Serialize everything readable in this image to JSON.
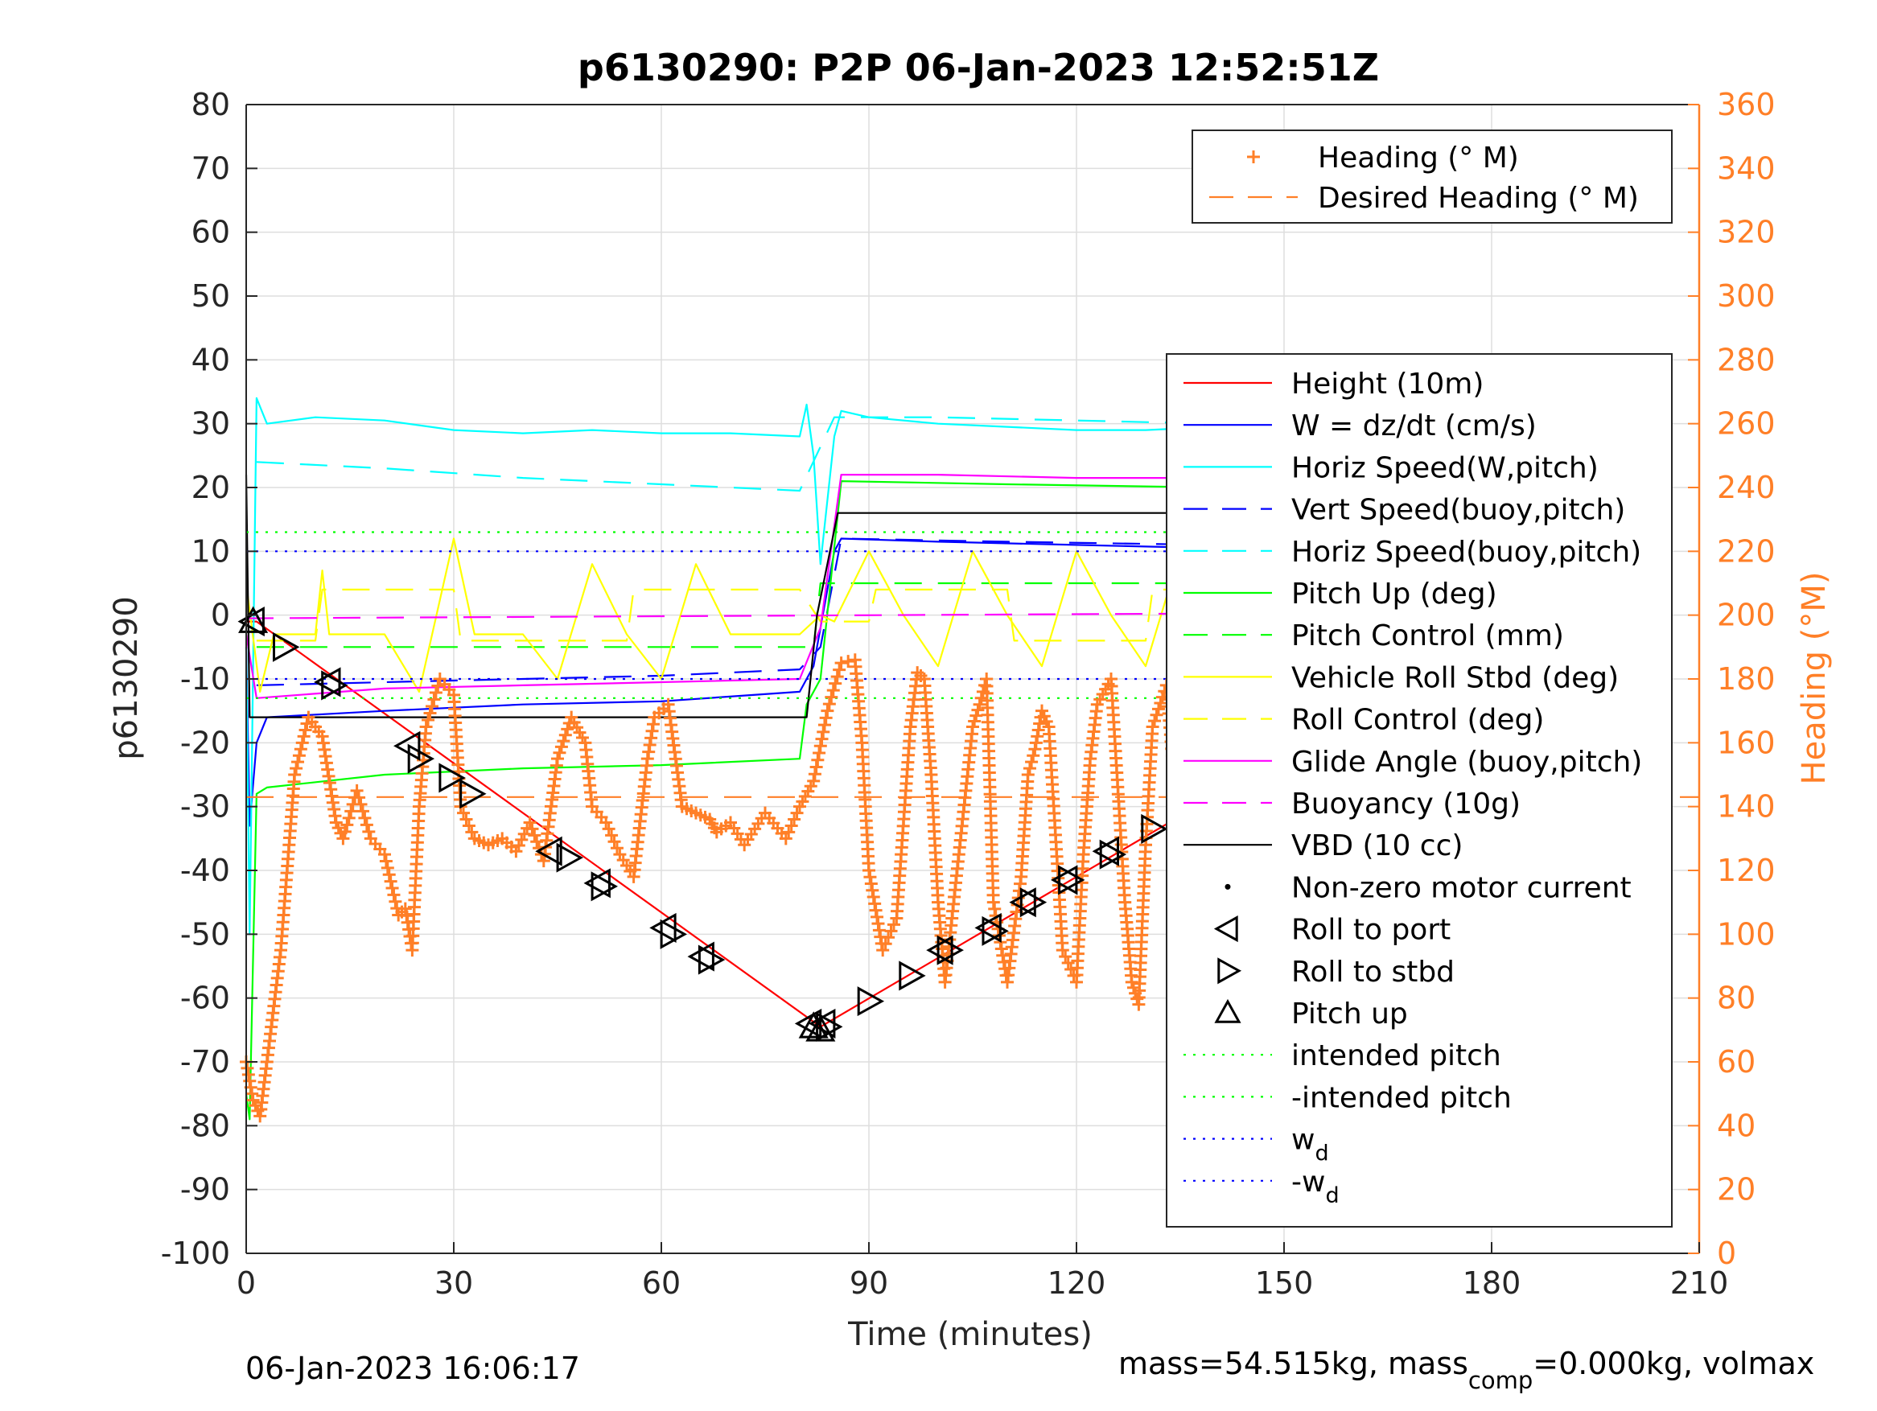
{
  "chart_data": {
    "type": "line",
    "title": "p6130290: P2P 06-Jan-2023 12:52:51Z",
    "xlabel": "Time (minutes)",
    "ylabel_left": "p6130290",
    "ylabel_right": "Heading (°M)",
    "xlim": [
      0,
      210
    ],
    "ylim_left": [
      -100,
      80
    ],
    "ylim_right": [
      0,
      360
    ],
    "xticks": [
      0,
      30,
      60,
      90,
      120,
      150,
      180,
      210
    ],
    "yticks_left": [
      80,
      70,
      60,
      50,
      40,
      30,
      20,
      10,
      0,
      -10,
      -20,
      -30,
      -40,
      -50,
      -60,
      -70,
      -80,
      -90,
      -100
    ],
    "yticks_right": [
      360,
      340,
      320,
      300,
      280,
      260,
      240,
      220,
      200,
      180,
      160,
      140,
      120,
      100,
      80,
      60,
      40,
      20,
      0
    ],
    "grid": true,
    "footer_left": "06-Jan-2023 16:06:17",
    "footer_right_parts": [
      "mass=54.515kg, mass",
      "comp",
      "=0.000kg, volmax"
    ],
    "legend_top": {
      "placement": "top-right",
      "entries": [
        {
          "label": "Heading (° M)",
          "color": "#ff7f27",
          "style": "plus"
        },
        {
          "label": "Desired Heading (° M)",
          "color": "#ff7f27",
          "style": "dashed"
        }
      ]
    },
    "legend_main": {
      "placement": "right",
      "entries": [
        {
          "label": "Height (10m)",
          "color": "#ff0000",
          "style": "solid"
        },
        {
          "label": "W = dz/dt (cm/s)",
          "color": "#0000ff",
          "style": "solid"
        },
        {
          "label": "Horiz Speed(W,pitch)",
          "color": "#00ffff",
          "style": "solid"
        },
        {
          "label": "Vert Speed(buoy,pitch)",
          "color": "#0000ff",
          "style": "dashed"
        },
        {
          "label": "Horiz Speed(buoy,pitch)",
          "color": "#00ffff",
          "style": "dashed"
        },
        {
          "label": "Pitch Up (deg)",
          "color": "#00ff00",
          "style": "solid"
        },
        {
          "label": "Pitch Control (mm)",
          "color": "#00ff00",
          "style": "dashed"
        },
        {
          "label": "Vehicle Roll Stbd (deg)",
          "color": "#ffff00",
          "style": "solid"
        },
        {
          "label": "Roll Control (deg)",
          "color": "#ffff00",
          "style": "dashed"
        },
        {
          "label": "Glide Angle (buoy,pitch)",
          "color": "#ff00ff",
          "style": "solid"
        },
        {
          "label": "Buoyancy (10g)",
          "color": "#ff00ff",
          "style": "dashed"
        },
        {
          "label": "VBD (10 cc)",
          "color": "#000000",
          "style": "solid"
        },
        {
          "label": "Non-zero motor current",
          "color": "#000000",
          "style": "dot"
        },
        {
          "label": "Roll to port",
          "color": "#000000",
          "style": "tri-left"
        },
        {
          "label": "Roll to stbd",
          "color": "#000000",
          "style": "tri-right"
        },
        {
          "label": "Pitch up",
          "color": "#000000",
          "style": "tri-up"
        },
        {
          "label": "intended pitch",
          "color": "#00ff00",
          "style": "dotted"
        },
        {
          "label": "-intended pitch",
          "color": "#00ff00",
          "style": "dotted"
        },
        {
          "label": "w",
          "sub": "d",
          "color": "#0000ff",
          "style": "dotted"
        },
        {
          "label": "-w",
          "sub": "d",
          "color": "#0000ff",
          "style": "dotted"
        }
      ]
    },
    "series": [
      {
        "name": "Height (10m)",
        "axis": "left",
        "color": "#ff0000",
        "x": [
          0,
          1.5,
          83,
          183
        ],
        "y": [
          -1,
          -1,
          -64.5,
          -1
        ]
      },
      {
        "name": "W = dz/dt (cm/s)",
        "axis": "left",
        "color": "#0000ff",
        "x": [
          0,
          0.5,
          1.5,
          3,
          20,
          40,
          60,
          80,
          82,
          85,
          86,
          100,
          120,
          140,
          160,
          185
        ],
        "y": [
          -5,
          -33,
          -20,
          -16,
          -15,
          -14,
          -13.5,
          -12,
          -8,
          10,
          12,
          11.5,
          11,
          10.5,
          10,
          9.5
        ]
      },
      {
        "name": "Horiz Speed(W,pitch)",
        "axis": "left",
        "color": "#00ffff",
        "x": [
          0,
          0.5,
          1.5,
          3,
          10,
          20,
          30,
          40,
          50,
          60,
          70,
          80,
          81,
          82,
          83,
          84,
          85,
          86,
          90,
          100,
          110,
          120,
          130,
          140,
          150,
          160,
          170,
          180,
          183,
          184,
          185
        ],
        "y": [
          -5,
          -50,
          34,
          30,
          31,
          30.5,
          29,
          28.5,
          29,
          28.5,
          28.5,
          28,
          33,
          25,
          8,
          18,
          28,
          32,
          31,
          30,
          29.5,
          29,
          29,
          29.5,
          30,
          30,
          30,
          29,
          28,
          35,
          28
        ]
      },
      {
        "name": "Vert Speed(buoy,pitch)",
        "axis": "left",
        "color": "#0000ff",
        "x": [
          1.5,
          20,
          40,
          60,
          80,
          83,
          86,
          110,
          140,
          160,
          185
        ],
        "y": [
          -11,
          -10.5,
          -10,
          -9.5,
          -8.5,
          -5,
          12,
          11.5,
          11,
          10,
          9
        ]
      },
      {
        "name": "Horiz Speed(buoy,pitch)",
        "axis": "left",
        "color": "#00ffff",
        "x": [
          1.5,
          20,
          40,
          60,
          80,
          85,
          100,
          120,
          140,
          160,
          185
        ],
        "y": [
          24,
          23,
          21.5,
          20.5,
          19.5,
          31,
          31,
          30.5,
          30,
          29.5,
          29
        ]
      },
      {
        "name": "Pitch Up (deg)",
        "axis": "left",
        "color": "#00ff00",
        "x": [
          0,
          0.5,
          1.5,
          3,
          20,
          40,
          60,
          80,
          81,
          83,
          86,
          110,
          140,
          160,
          185
        ],
        "y": [
          -75,
          -79,
          -28,
          -27,
          -25,
          -24,
          -23.5,
          -22.5,
          -14,
          -10,
          21,
          20.5,
          20,
          19,
          17.5
        ]
      },
      {
        "name": "Pitch Control (mm)",
        "axis": "left",
        "color": "#00ff00",
        "x": [
          1.5,
          82,
          83,
          185
        ],
        "y": [
          -5,
          -5,
          5,
          5
        ]
      },
      {
        "name": "Vehicle Roll Stbd (deg)",
        "axis": "left",
        "color": "#ffff00",
        "x": [
          0,
          2,
          4,
          8,
          10,
          11,
          12,
          20,
          25,
          30,
          33,
          40,
          45,
          50,
          55,
          60,
          65,
          70,
          75,
          80,
          83,
          85,
          90,
          95,
          100,
          105,
          110,
          115,
          120,
          125,
          130,
          135,
          140,
          145,
          150,
          155,
          160,
          165,
          170,
          175,
          180,
          185
        ],
        "y": [
          5,
          -12,
          -3,
          -3,
          -3,
          7,
          -3,
          -3,
          -12,
          12,
          -3,
          -3,
          -10,
          8,
          -3,
          -10,
          8,
          -3,
          -3,
          -3,
          0,
          -1,
          10,
          0,
          -8,
          10,
          0,
          -8,
          10,
          0,
          -8,
          10,
          -10,
          10,
          0,
          -8,
          10,
          0,
          -12,
          10,
          0,
          5
        ]
      },
      {
        "name": "Roll Control (deg)",
        "axis": "left",
        "color": "#ffff00",
        "x": [
          1.5,
          10,
          11,
          30,
          31,
          55,
          56,
          80,
          83,
          90,
          91,
          110,
          111,
          130,
          131,
          150,
          151,
          170,
          171,
          185
        ],
        "y": [
          -4,
          -4,
          4,
          4,
          -4,
          -4,
          4,
          4,
          -1,
          -1,
          4,
          4,
          -4,
          -4,
          4,
          4,
          -4,
          -4,
          4,
          4
        ]
      },
      {
        "name": "Glide Angle (buoy,pitch)",
        "axis": "left",
        "color": "#ff00ff",
        "x": [
          0,
          1.5,
          20,
          40,
          60,
          80,
          83,
          86,
          100,
          120,
          140,
          160,
          170,
          171,
          185
        ],
        "y": [
          -3,
          -13,
          -11.5,
          -11,
          -10.5,
          -10,
          -2,
          22,
          22,
          21.5,
          21.5,
          21,
          21,
          23.5,
          23
        ]
      },
      {
        "name": "Buoyancy (10g)",
        "axis": "left",
        "color": "#ff00ff",
        "x": [
          0,
          185
        ],
        "y": [
          -0.5,
          0.5
        ]
      },
      {
        "name": "VBD (10 cc)",
        "axis": "left",
        "color": "#000000",
        "x": [
          0,
          0.5,
          1.5,
          81,
          82.5,
          85.5,
          185
        ],
        "y": [
          22,
          -16,
          -16,
          -16,
          0,
          16,
          16
        ]
      },
      {
        "name": "intended pitch",
        "axis": "left",
        "color": "#00ff00",
        "x": [
          0,
          185
        ],
        "y": [
          13,
          13
        ]
      },
      {
        "name": "-intended pitch",
        "axis": "left",
        "color": "#00ff00",
        "x": [
          0,
          185
        ],
        "y": [
          -13,
          -13
        ]
      },
      {
        "name": "w_d",
        "axis": "left",
        "color": "#0000ff",
        "x": [
          0,
          185
        ],
        "y": [
          10,
          10
        ]
      },
      {
        "name": "-w_d",
        "axis": "left",
        "color": "#0000ff",
        "x": [
          0,
          185
        ],
        "y": [
          -10,
          -10
        ]
      },
      {
        "name": "Desired Heading (° M)",
        "axis": "right",
        "color": "#ff7f27",
        "x": [
          0,
          210
        ],
        "y": [
          143,
          143
        ]
      },
      {
        "name": "Heading (° M)",
        "axis": "right",
        "color": "#ff7f27",
        "marker": "plus",
        "x": [
          0,
          1,
          2,
          3,
          5,
          7,
          9,
          11,
          13,
          14,
          16,
          18,
          20,
          22,
          23,
          24,
          25,
          26,
          28,
          30,
          31,
          33,
          35,
          37,
          39,
          41,
          43,
          45,
          47,
          49,
          50,
          52,
          54,
          56,
          58,
          59,
          61,
          63,
          65,
          67,
          68,
          70,
          72,
          75,
          78,
          80,
          82,
          84,
          86,
          88,
          89,
          90,
          92,
          94,
          96,
          97,
          98,
          99,
          100,
          101,
          103,
          105,
          106,
          107,
          108,
          110,
          112,
          113,
          114,
          115,
          116,
          118,
          120,
          121,
          122,
          123,
          125,
          127,
          128,
          129,
          130,
          131,
          133,
          135,
          137,
          139,
          140,
          141,
          142,
          143,
          144,
          145,
          146,
          147,
          148,
          150,
          152,
          153,
          154,
          155,
          156,
          157,
          158,
          159,
          160,
          162,
          164,
          166,
          168,
          170,
          172,
          174,
          176,
          177,
          178,
          179,
          180,
          181,
          182,
          183,
          184,
          185
        ],
        "y": [
          60,
          48,
          43,
          60,
          95,
          150,
          168,
          162,
          135,
          130,
          145,
          130,
          125,
          106,
          108,
          95,
          140,
          165,
          180,
          175,
          140,
          130,
          128,
          130,
          126,
          135,
          123,
          155,
          168,
          160,
          140,
          135,
          125,
          118,
          155,
          168,
          172,
          140,
          138,
          136,
          132,
          135,
          128,
          138,
          130,
          140,
          148,
          170,
          185,
          186,
          160,
          120,
          95,
          105,
          165,
          182,
          180,
          150,
          110,
          85,
          125,
          165,
          172,
          180,
          110,
          85,
          118,
          150,
          158,
          170,
          165,
          95,
          85,
          125,
          155,
          172,
          180,
          110,
          85,
          78,
          128,
          165,
          178,
          125,
          88,
          98,
          130,
          170,
          175,
          182,
          176,
          158,
          100,
          85,
          80,
          148,
          140,
          175,
          183,
          176,
          160,
          135,
          92,
          80,
          82,
          92,
          150,
          120,
          140,
          108,
          160,
          103,
          95,
          80,
          125,
          160,
          128,
          100,
          115,
          92,
          68,
          125
        ]
      }
    ],
    "markers": {
      "roll_to_port": [
        [
          1,
          -1
        ],
        [
          12,
          -10.5
        ],
        [
          23.5,
          -20.5
        ],
        [
          44,
          -37
        ],
        [
          51,
          -42
        ],
        [
          60.5,
          -49
        ],
        [
          66,
          -53.5
        ],
        [
          81.5,
          -64
        ],
        [
          83.5,
          -64
        ],
        [
          100.5,
          -52.5
        ],
        [
          107.5,
          -49
        ],
        [
          112.5,
          -45
        ],
        [
          118.5,
          -41.5
        ],
        [
          124.5,
          -37
        ],
        [
          138.5,
          -27.5
        ],
        [
          143.5,
          -24
        ],
        [
          149.5,
          -21
        ],
        [
          155,
          -18
        ],
        [
          159,
          -15.5
        ],
        [
          163,
          -13
        ],
        [
          167.5,
          -10
        ],
        [
          172,
          -8
        ],
        [
          176.5,
          -5.5
        ],
        [
          181,
          -3.5
        ]
      ],
      "roll_to_stbd": [
        [
          5.5,
          -5
        ],
        [
          12.5,
          -11
        ],
        [
          25,
          -22.5
        ],
        [
          29.5,
          -25.5
        ],
        [
          32.5,
          -28
        ],
        [
          46.5,
          -38
        ],
        [
          51.5,
          -42.5
        ],
        [
          61.5,
          -50
        ],
        [
          67,
          -54
        ],
        [
          84,
          -64.5
        ],
        [
          90,
          -60.5
        ],
        [
          96,
          -56.5
        ],
        [
          101.5,
          -52.5
        ],
        [
          108,
          -49.5
        ],
        [
          113.5,
          -45
        ],
        [
          119,
          -41.5
        ],
        [
          125,
          -37.5
        ],
        [
          131,
          -33.5
        ],
        [
          139,
          -27.5
        ],
        [
          150.5,
          -20.5
        ],
        [
          156,
          -17.5
        ],
        [
          164,
          -12.5
        ],
        [
          169,
          -9.5
        ],
        [
          173,
          -7
        ],
        [
          178,
          -5
        ],
        [
          183.5,
          -1
        ]
      ],
      "pitch_up": [
        [
          1,
          -1
        ],
        [
          82,
          -64.5
        ],
        [
          83,
          -65
        ]
      ]
    }
  }
}
